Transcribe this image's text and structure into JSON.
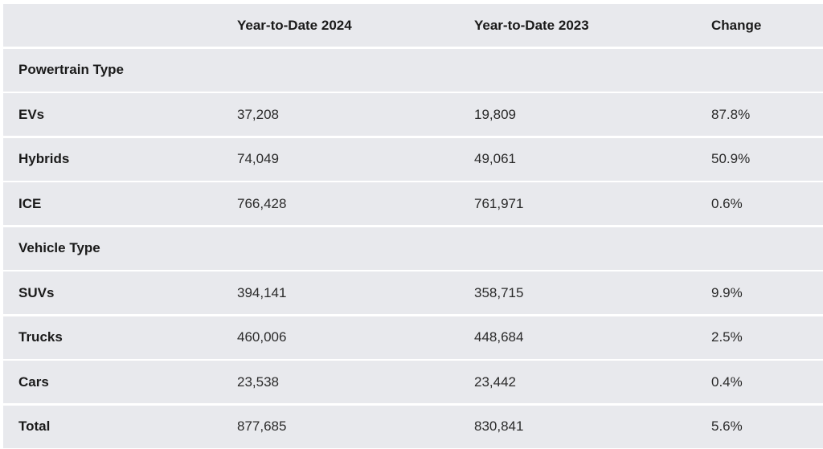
{
  "table": {
    "headers": [
      "",
      "Year-to-Date 2024",
      "Year-to-Date 2023",
      "Change"
    ],
    "rows": [
      {
        "kind": "section",
        "cells": [
          "Powertrain Type",
          "",
          "",
          ""
        ]
      },
      {
        "kind": "data",
        "cells": [
          "EVs",
          "37,208",
          "19,809",
          "87.8%"
        ]
      },
      {
        "kind": "data",
        "cells": [
          "Hybrids",
          "74,049",
          "49,061",
          "50.9%"
        ]
      },
      {
        "kind": "data",
        "cells": [
          "ICE",
          "766,428",
          "761,971",
          "0.6%"
        ]
      },
      {
        "kind": "section",
        "cells": [
          "Vehicle Type",
          "",
          "",
          ""
        ]
      },
      {
        "kind": "data",
        "cells": [
          "SUVs",
          "394,141",
          "358,715",
          "9.9%"
        ]
      },
      {
        "kind": "data",
        "cells": [
          "Trucks",
          "460,006",
          "448,684",
          "2.5%"
        ]
      },
      {
        "kind": "data",
        "cells": [
          "Cars",
          "23,538",
          "23,442",
          "0.4%"
        ]
      },
      {
        "kind": "data",
        "cells": [
          "Total",
          "877,685",
          "830,841",
          "5.6%"
        ]
      }
    ]
  }
}
